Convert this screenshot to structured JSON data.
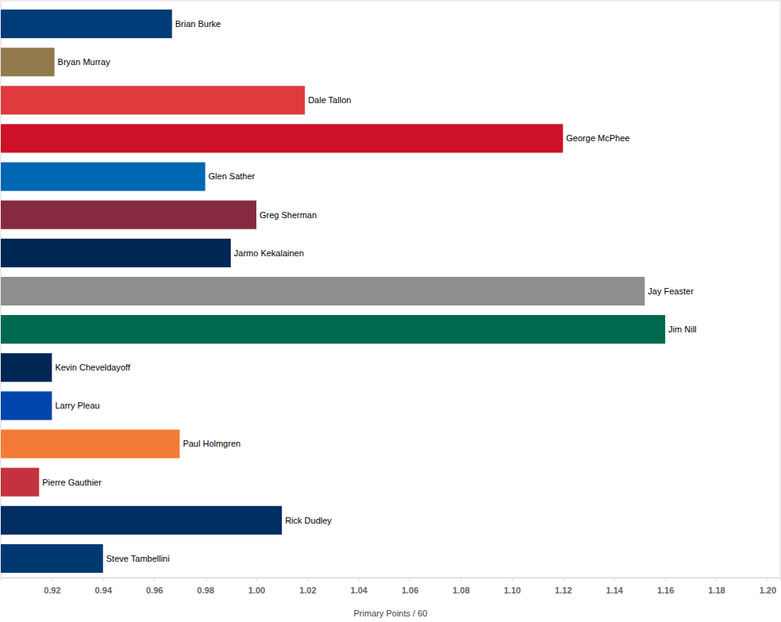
{
  "chart_data": {
    "type": "bar",
    "orientation": "horizontal",
    "x_label": "Primary Points / 60",
    "categories": [
      "Brian Burke",
      "Bryan Murray",
      "Dale Tallon",
      "George McPhee",
      "Glen Sather",
      "Greg Sherman",
      "Jarmo Kekalainen",
      "Jay Feaster",
      "Jim Nill",
      "Kevin Cheveldayoff",
      "Larry Pleau",
      "Paul Holmgren",
      "Pierre Gauthier",
      "Rick Dudley",
      "Steve Tambellini"
    ],
    "values": [
      0.967,
      0.921,
      1.019,
      1.12,
      0.98,
      1.0,
      0.99,
      1.152,
      1.16,
      0.92,
      0.92,
      0.97,
      0.915,
      1.01,
      0.94
    ],
    "colors": [
      "#003c78",
      "#927a4e",
      "#e03a3e",
      "#ce1126",
      "#0067b3",
      "#862a41",
      "#002654",
      "#8e8e90",
      "#006a4e",
      "#002654",
      "#0046ad",
      "#f47a38",
      "#c4323f",
      "#002d62",
      "#003871"
    ],
    "xlim": [
      0.9,
      1.205
    ],
    "xticks": [
      {
        "value": 0.92,
        "label": "0.92"
      },
      {
        "value": 0.94,
        "label": "0.94"
      },
      {
        "value": 0.96,
        "label": "0.96"
      },
      {
        "value": 0.98,
        "label": "0.98"
      },
      {
        "value": 1.0,
        "label": "1.00"
      },
      {
        "value": 1.02,
        "label": "1.02"
      },
      {
        "value": 1.04,
        "label": "1.04"
      },
      {
        "value": 1.06,
        "label": "1.06"
      },
      {
        "value": 1.08,
        "label": "1.08"
      },
      {
        "value": 1.1,
        "label": "1.10"
      },
      {
        "value": 1.12,
        "label": "1.12"
      },
      {
        "value": 1.14,
        "label": "1.14"
      },
      {
        "value": 1.16,
        "label": "1.16"
      },
      {
        "value": 1.18,
        "label": "1.18"
      },
      {
        "value": 1.2,
        "label": "1.20"
      }
    ],
    "grid": false,
    "tick_labels": "x"
  }
}
